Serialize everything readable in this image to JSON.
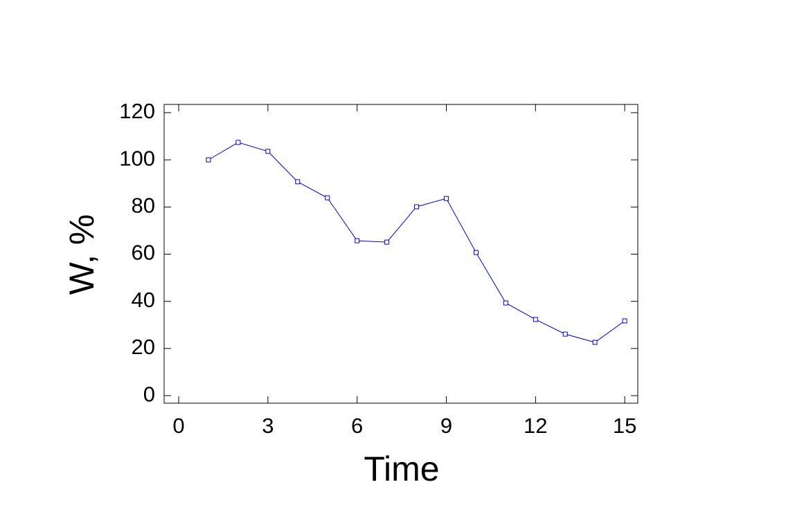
{
  "chart_data": {
    "type": "line",
    "x_label": "Time",
    "y_label": "W, %",
    "x": [
      1,
      2,
      3,
      4,
      5,
      6,
      7,
      8,
      9,
      10,
      11,
      12,
      13,
      14,
      15
    ],
    "series": [
      {
        "color": "#0000cc",
        "values": [
          100.0,
          107.4,
          103.6,
          90.7,
          83.9,
          65.7,
          65.1,
          80.1,
          83.6,
          60.7,
          39.3,
          32.3,
          26.1,
          22.6,
          31.7
        ]
      }
    ],
    "xlim": [
      -0.49,
      15.44
    ],
    "ylim": [
      -3.2,
      123.5
    ],
    "xticks": [
      0,
      3,
      6,
      9,
      12,
      15
    ],
    "yticks": [
      0,
      20,
      40,
      60,
      80,
      100,
      120
    ],
    "marker": "square"
  }
}
